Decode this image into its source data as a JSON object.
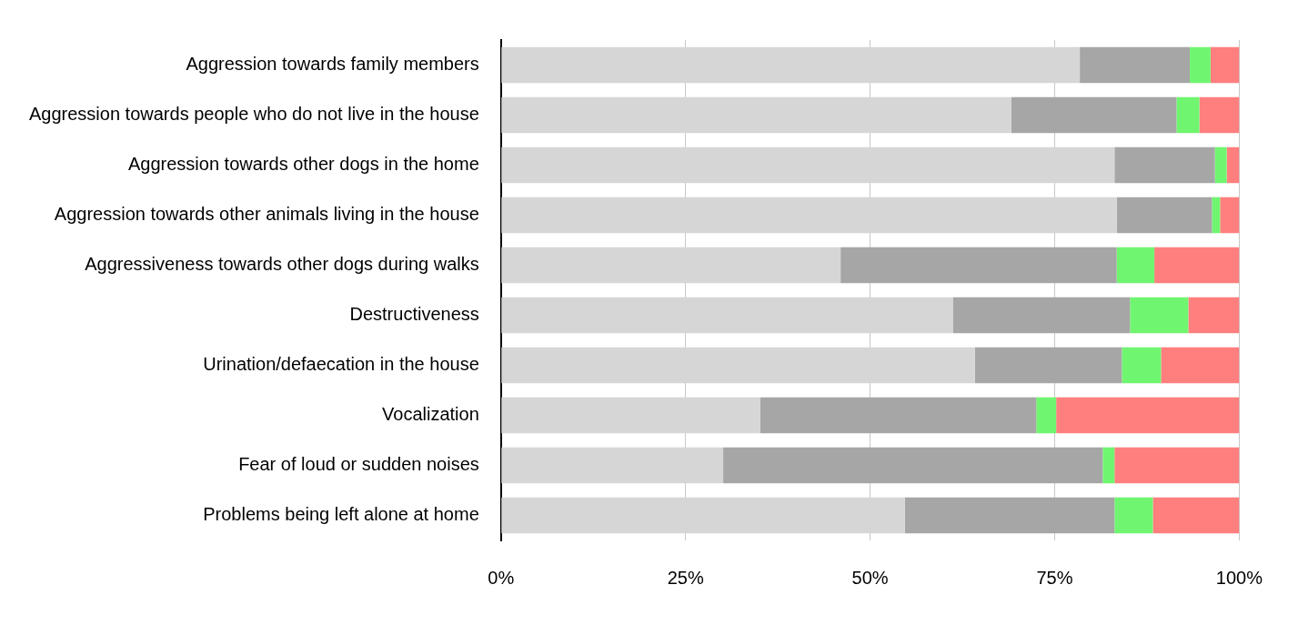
{
  "chart_data": {
    "type": "bar",
    "orientation": "horizontal",
    "stacked": true,
    "categories": [
      "Aggression towards family members",
      "Aggression towards people who do not live in the house",
      "Aggression towards other dogs in the home",
      "Aggression towards other animals living in the house",
      "Aggressiveness towards other dogs during walks",
      "Destructiveness",
      "Urination/defaecation in the house",
      "Vocalization",
      "Fear of loud or sudden noises",
      "Problems being left alone at home"
    ],
    "series": [
      {
        "color": "#d6d6d6",
        "values": [
          78.4,
          69.1,
          83.1,
          83.4,
          46.0,
          61.2,
          64.2,
          35.1,
          30.1,
          54.7
        ]
      },
      {
        "color": "#a6a6a6",
        "values": [
          14.9,
          22.4,
          13.6,
          12.9,
          37.4,
          24.0,
          19.9,
          37.4,
          51.4,
          28.4
        ]
      },
      {
        "color": "#70f570",
        "values": [
          2.8,
          3.1,
          1.6,
          1.1,
          5.1,
          7.9,
          5.3,
          2.7,
          1.6,
          5.2
        ]
      },
      {
        "color": "#ff7f7f",
        "values": [
          3.9,
          5.4,
          1.7,
          2.6,
          11.5,
          6.9,
          10.6,
          24.8,
          16.9,
          11.7
        ]
      }
    ],
    "xlim": [
      0,
      100
    ],
    "xticks": [
      {
        "value": 0,
        "label": "0%"
      },
      {
        "value": 25,
        "label": "25%"
      },
      {
        "value": 50,
        "label": "50%"
      },
      {
        "value": 75,
        "label": "75%"
      },
      {
        "value": 100,
        "label": "100%"
      }
    ],
    "grid": "x",
    "legend": false
  }
}
